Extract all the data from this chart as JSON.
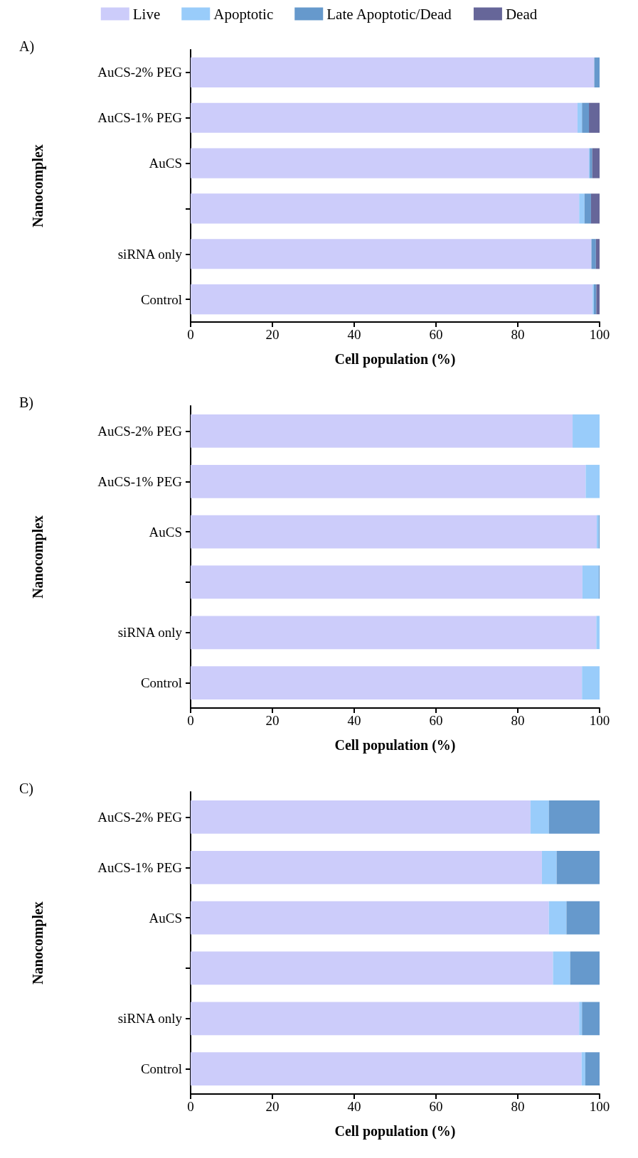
{
  "chart_data": [
    {
      "type": "bar",
      "orientation": "horizontal",
      "stacked": true,
      "title": "A)",
      "xlabel": "Cell population (%)",
      "ylabel": "Nanocomplex",
      "legend": "top",
      "grid": false,
      "categories": [
        "AuCS-2% PEG",
        "AuCS-1% PEG",
        "AuCS",
        null,
        "siRNA only",
        "Control"
      ],
      "xlim": [
        0,
        100
      ],
      "xticks": [
        0,
        20,
        40,
        60,
        80,
        100
      ],
      "series": [
        {
          "name": "Live",
          "color": "#ccccfa",
          "values": [
            98.7,
            94.6,
            97.4,
            95.0,
            98.0,
            98.3
          ]
        },
        {
          "name": "Apoptotic",
          "color": "#99ccfa",
          "values": [
            0,
            1.1,
            0.2,
            1.3,
            0,
            0.3
          ]
        },
        {
          "name": "Late Apoptotic/Dead",
          "color": "#6699cc",
          "values": [
            1.3,
            1.7,
            0.6,
            1.6,
            1.1,
            0.6
          ]
        },
        {
          "name": "Dead",
          "color": "#666699",
          "values": [
            0,
            2.6,
            1.8,
            2.1,
            0.9,
            0.8
          ]
        }
      ]
    },
    {
      "type": "bar",
      "orientation": "horizontal",
      "stacked": true,
      "title": "B)",
      "xlabel": "Cell population (%)",
      "ylabel": "Nanocomplex",
      "grid": false,
      "categories": [
        "AuCS-2% PEG",
        "AuCS-1% PEG",
        "AuCS",
        null,
        "siRNA only",
        "Control"
      ],
      "xlim": [
        0,
        100
      ],
      "xticks": [
        0,
        20,
        40,
        60,
        80,
        100
      ],
      "series": [
        {
          "color": "#ccccfa",
          "values": [
            93.4,
            96.6,
            99.3,
            95.8,
            99.2,
            95.7
          ]
        },
        {
          "color": "#99ccfa",
          "values": [
            6.6,
            3.4,
            0.5,
            4.0,
            0.8,
            4.3
          ]
        },
        {
          "color": "#6699cc",
          "values": [
            0,
            0,
            0.2,
            0.2,
            0,
            0
          ]
        },
        {
          "color": "#666699",
          "values": [
            0,
            0,
            0,
            0,
            0,
            0
          ]
        }
      ]
    },
    {
      "type": "bar",
      "orientation": "horizontal",
      "stacked": true,
      "title": "C)",
      "xlabel": "Cell population (%)",
      "ylabel": "Nanocomplex",
      "grid": false,
      "categories": [
        "AuCS-2% PEG",
        "AuCS-1% PEG",
        "AuCS",
        null,
        "siRNA only",
        "Control"
      ],
      "xlim": [
        0,
        100
      ],
      "xticks": [
        0,
        20,
        40,
        60,
        80,
        100
      ],
      "series": [
        {
          "color": "#ccccfa",
          "values": [
            83.1,
            85.9,
            87.6,
            88.6,
            95.0,
            95.6
          ]
        },
        {
          "color": "#99ccfa",
          "values": [
            4.5,
            3.6,
            4.3,
            4.2,
            0.7,
            0.9
          ]
        },
        {
          "color": "#6699cc",
          "values": [
            12.4,
            10.5,
            8.1,
            7.2,
            4.3,
            3.5
          ]
        },
        {
          "color": "#666699",
          "values": [
            0,
            0,
            0,
            0,
            0,
            0
          ]
        }
      ]
    }
  ]
}
